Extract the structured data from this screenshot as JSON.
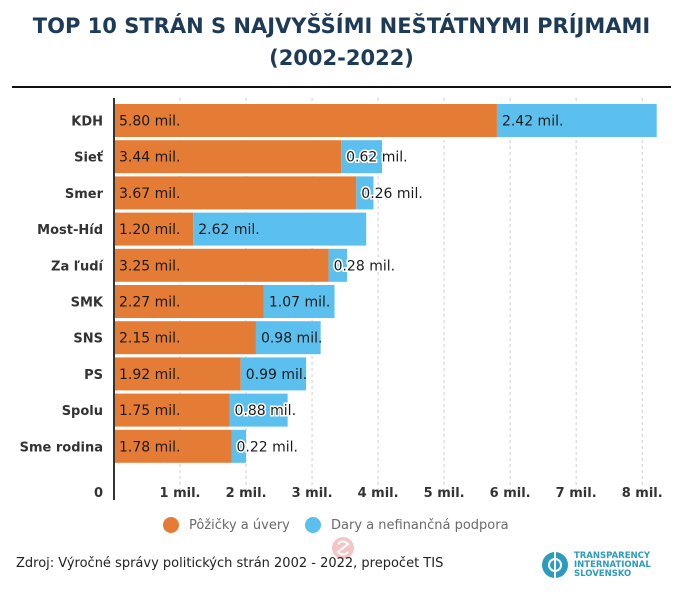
{
  "title_line1": "TOP 10 STRÁN S NAJVYŠŠÍMI NEŠTÁTNYMI PRÍJMAMI",
  "title_line2": "(2002-2022)",
  "chart_data": {
    "type": "bar",
    "orientation": "horizontal",
    "stacked": true,
    "categories": [
      "KDH",
      "Sieť",
      "Smer",
      "Most-Híd",
      "Za ľudí",
      "SMK",
      "SNS",
      "PS",
      "Spolu",
      "Sme rodina"
    ],
    "series": [
      {
        "name": "Pôžičky a úvery",
        "color": "#e57c36",
        "values": [
          5.8,
          3.44,
          3.67,
          1.2,
          3.25,
          2.27,
          2.15,
          1.92,
          1.75,
          1.78
        ],
        "labels": [
          "5.80 mil.",
          "3.44 mil.",
          "3.67 mil.",
          "1.20 mil.",
          "3.25 mil.",
          "2.27 mil.",
          "2.15 mil.",
          "1.92 mil.",
          "1.75 mil.",
          "1.78 mil."
        ]
      },
      {
        "name": "Dary a nefinančná podpora",
        "color": "#5bc0ed",
        "values": [
          2.42,
          0.62,
          0.26,
          2.62,
          0.28,
          1.07,
          0.98,
          0.99,
          0.88,
          0.22
        ],
        "labels": [
          "2.42 mil.",
          "0.62 mil.",
          "0.26 mil.",
          "2.62 mil.",
          "0.28 mil.",
          "1.07 mil.",
          "0.98 mil.",
          "0.99 mil.",
          "0.88 mil.",
          "0.22 mil."
        ]
      }
    ],
    "x_ticks": [
      "0",
      "1 mil.",
      "2 mil.",
      "3 mil.",
      "4 mil.",
      "5 mil.",
      "6 mil.",
      "7 mil.",
      "8 mil."
    ],
    "xlim": [
      0,
      8.3
    ],
    "grid": "vertical dashed",
    "legend_position": "bottom-center"
  },
  "source": "Zdroj: Výročné správy politických strán 2002 - 2022, prepočet TIS",
  "logo_lines": [
    "TRANSPARENCY",
    "INTERNATIONAL",
    "SLOVENSKO"
  ]
}
